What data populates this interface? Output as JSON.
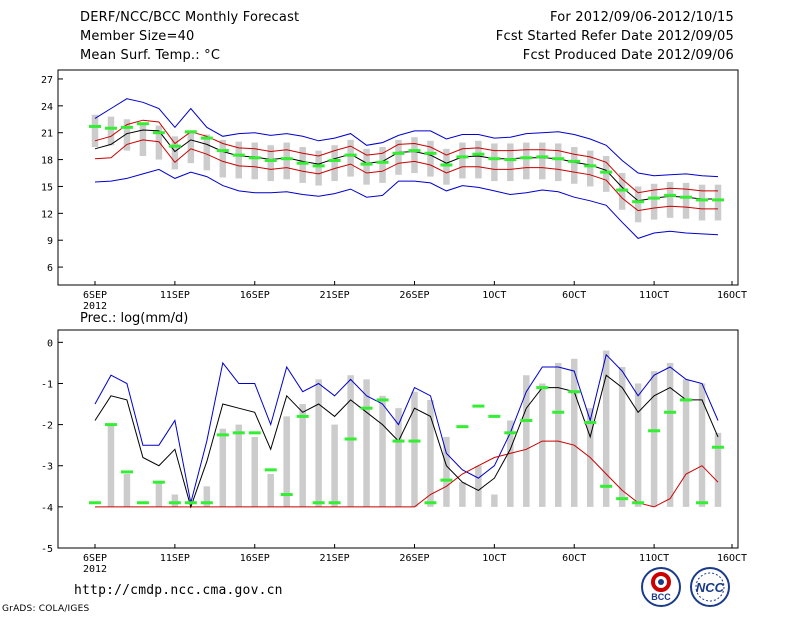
{
  "header": {
    "title": "DERF/NCC/BCC Monthly Forecast",
    "member": "Member Size=40",
    "variable": "Mean Surf. Temp.: °C",
    "period": "For 2012/09/06-2012/10/15",
    "refer": "Fcst Started Refer Date 2012/09/05",
    "produced": "Fcst Produced Date 2012/09/06"
  },
  "footer": {
    "url": "http://cmdp.ncc.cma.gov.cn",
    "grads": "GrADS: COLA/IGES",
    "logo1": "BCC",
    "logo2": "NCC"
  },
  "colors": {
    "box": "#cccccc",
    "median": "#33ee33",
    "envelope": "#0000cc",
    "mean": "#000000",
    "std": "#cc0000",
    "axis": "#000000"
  },
  "chart_data": [
    {
      "name": "temperature",
      "type": "line",
      "title": "Mean Surf. Temp.: °C",
      "xlabels": [
        "6SEP",
        "11SEP",
        "16SEP",
        "21SEP",
        "26SEP",
        "1OCT",
        "6OCT",
        "11OCT",
        "16OCT"
      ],
      "xyear": "2012",
      "ylim": [
        4,
        28
      ],
      "yticks": [
        6,
        9,
        12,
        15,
        18,
        21,
        24,
        27
      ],
      "days": 40,
      "series": [
        {
          "name": "max",
          "values": [
            22.6,
            23.7,
            24.8,
            24.4,
            23.7,
            21.6,
            23.7,
            21.6,
            20.6,
            20.9,
            21.0,
            20.7,
            20.9,
            20.6,
            20.1,
            20.4,
            20.9,
            19.6,
            19.9,
            20.7,
            21.2,
            21.2,
            20.3,
            20.8,
            20.8,
            20.4,
            20.5,
            20.9,
            21.0,
            21.1,
            20.8,
            20.3,
            19.6,
            17.9,
            16.5,
            16.2,
            16.3,
            16.4,
            16.2,
            16.1
          ]
        },
        {
          "name": "mean_plus_std",
          "values": [
            20.1,
            20.6,
            21.9,
            22.4,
            22.2,
            19.8,
            21.1,
            20.6,
            19.8,
            19.3,
            19.2,
            18.9,
            19.1,
            18.7,
            18.4,
            19.0,
            19.5,
            18.5,
            18.7,
            19.7,
            19.8,
            19.4,
            18.5,
            19.2,
            19.3,
            19.0,
            19.0,
            19.1,
            19.1,
            19.0,
            18.6,
            18.3,
            17.7,
            15.8,
            14.3,
            14.6,
            14.8,
            14.7,
            14.5,
            14.5
          ]
        },
        {
          "name": "mean",
          "values": [
            19.2,
            19.7,
            20.9,
            21.3,
            21.2,
            18.9,
            20.2,
            19.7,
            18.9,
            18.4,
            18.3,
            18.0,
            18.2,
            17.8,
            17.5,
            18.1,
            18.6,
            17.6,
            17.8,
            18.8,
            18.9,
            18.5,
            17.6,
            18.3,
            18.4,
            18.1,
            18.1,
            18.2,
            18.2,
            18.1,
            17.7,
            17.4,
            16.8,
            14.9,
            13.4,
            13.7,
            13.9,
            13.8,
            13.6,
            13.6
          ]
        },
        {
          "name": "mean_minus_std",
          "values": [
            18.1,
            18.2,
            19.7,
            20.2,
            20.0,
            17.7,
            19.2,
            18.6,
            17.8,
            17.3,
            17.2,
            16.9,
            17.1,
            16.7,
            16.4,
            17.0,
            17.5,
            16.5,
            16.7,
            17.6,
            17.8,
            17.4,
            16.5,
            17.2,
            17.2,
            16.9,
            16.9,
            17.1,
            17.1,
            16.9,
            16.6,
            16.3,
            15.7,
            13.7,
            12.3,
            12.6,
            12.8,
            12.7,
            12.5,
            12.5
          ]
        },
        {
          "name": "min",
          "values": [
            15.5,
            15.6,
            15.9,
            16.4,
            16.9,
            15.9,
            16.6,
            16.1,
            15.1,
            14.5,
            14.3,
            14.3,
            14.4,
            14.1,
            13.9,
            14.2,
            14.7,
            13.8,
            14.0,
            15.6,
            15.6,
            15.4,
            14.5,
            15.1,
            14.9,
            14.5,
            14.1,
            14.3,
            14.6,
            14.4,
            13.8,
            13.4,
            12.9,
            11.0,
            9.2,
            9.8,
            10.0,
            9.8,
            9.7,
            9.6
          ]
        },
        {
          "name": "box_hi",
          "values": [
            23.0,
            22.8,
            22.5,
            22.0,
            21.8,
            20.6,
            21.0,
            20.8,
            20.2,
            20.0,
            19.9,
            19.6,
            19.9,
            19.4,
            19.0,
            19.6,
            20.2,
            19.2,
            19.4,
            20.2,
            20.5,
            20.1,
            19.2,
            19.9,
            20.1,
            19.8,
            19.8,
            19.9,
            19.9,
            19.8,
            19.4,
            19.0,
            18.4,
            16.5,
            15.0,
            15.3,
            15.5,
            15.4,
            15.2,
            15.2
          ]
        },
        {
          "name": "box_lo",
          "values": [
            19.4,
            19.6,
            19.0,
            18.4,
            18.0,
            16.9,
            17.6,
            16.8,
            16.0,
            15.9,
            15.8,
            15.6,
            15.8,
            15.4,
            15.1,
            15.6,
            16.1,
            15.2,
            15.4,
            16.3,
            16.5,
            16.1,
            15.2,
            15.9,
            15.9,
            15.6,
            15.6,
            15.8,
            15.8,
            15.6,
            15.3,
            15.0,
            14.4,
            12.4,
            11.0,
            11.3,
            11.5,
            11.4,
            11.2,
            11.2
          ]
        },
        {
          "name": "median",
          "values": [
            21.7,
            21.5,
            21.6,
            22.0,
            21.0,
            19.5,
            21.1,
            20.4,
            19.0,
            18.5,
            18.2,
            17.9,
            18.1,
            17.6,
            17.3,
            17.9,
            18.5,
            17.5,
            17.7,
            18.7,
            19.0,
            18.7,
            17.4,
            18.3,
            18.6,
            18.1,
            18.0,
            18.2,
            18.3,
            18.1,
            17.8,
            17.3,
            16.6,
            14.6,
            13.3,
            13.7,
            14.0,
            13.8,
            13.5,
            13.5
          ]
        }
      ]
    },
    {
      "name": "precipitation",
      "type": "bar",
      "title": "Prec.: log(mm/d)",
      "xlabels": [
        "6SEP",
        "11SEP",
        "16SEP",
        "21SEP",
        "26SEP",
        "1OCT",
        "6OCT",
        "11OCT",
        "16OCT"
      ],
      "xyear": "2012",
      "ylim": [
        -5,
        0.3
      ],
      "yticks": [
        -5,
        -4,
        -3,
        -2,
        -1,
        0
      ],
      "days": 40,
      "series": [
        {
          "name": "max",
          "values": [
            -1.5,
            -0.8,
            -1.0,
            -2.5,
            -2.5,
            -1.9,
            -3.9,
            -2.4,
            -0.5,
            -1.0,
            -1.0,
            -2.0,
            -0.6,
            -1.2,
            -1.0,
            -1.3,
            -0.9,
            -1.3,
            -1.5,
            -2.0,
            -1.1,
            -1.3,
            -2.7,
            -3.1,
            -3.3,
            -3.0,
            -2.2,
            -1.2,
            -0.6,
            -0.6,
            -0.7,
            -1.9,
            -0.3,
            -0.7,
            -1.3,
            -0.8,
            -0.6,
            -0.9,
            -1.0,
            -1.9
          ]
        },
        {
          "name": "mean",
          "values": [
            -1.9,
            -1.3,
            -1.4,
            -2.8,
            -3.0,
            -2.6,
            -4.0,
            -2.9,
            -1.5,
            -1.6,
            -1.7,
            -2.6,
            -1.3,
            -1.7,
            -1.5,
            -1.8,
            -1.4,
            -1.7,
            -2.0,
            -2.4,
            -1.6,
            -1.8,
            -3.0,
            -3.4,
            -3.6,
            -3.3,
            -2.6,
            -1.6,
            -1.1,
            -1.1,
            -1.2,
            -2.3,
            -0.8,
            -1.1,
            -1.7,
            -1.3,
            -1.1,
            -1.4,
            -1.4,
            -2.3
          ]
        },
        {
          "name": "mean_minus_std",
          "values": [
            -4.0,
            -4.0,
            -4.0,
            -4.0,
            -4.0,
            -4.0,
            -4.0,
            -4.0,
            -4.0,
            -4.0,
            -4.0,
            -4.0,
            -4.0,
            -4.0,
            -4.0,
            -4.0,
            -4.0,
            -4.0,
            -4.0,
            -4.0,
            -4.0,
            -3.7,
            -3.5,
            -3.2,
            -3.0,
            -2.8,
            -2.7,
            -2.6,
            -2.4,
            -2.4,
            -2.5,
            -2.8,
            -3.2,
            -3.6,
            -3.9,
            -4.0,
            -3.8,
            -3.2,
            -3.0,
            -3.4
          ]
        },
        {
          "name": "bar",
          "values": [
            -4.0,
            -2.0,
            -3.2,
            -4.0,
            -3.4,
            -3.7,
            -4.0,
            -3.5,
            -2.1,
            -2.0,
            -2.3,
            -3.2,
            -1.8,
            -1.5,
            -0.9,
            -2.0,
            -0.8,
            -0.9,
            -1.3,
            -1.6,
            -1.2,
            -1.4,
            -2.3,
            -3.4,
            -3.0,
            -3.7,
            -1.9,
            -0.8,
            -1.0,
            -0.5,
            -0.4,
            -1.6,
            -0.2,
            -0.6,
            -1.0,
            -0.7,
            -0.5,
            -0.9,
            -1.0,
            -2.2
          ]
        },
        {
          "name": "median",
          "values": [
            -3.9,
            -2.0,
            -3.15,
            -3.9,
            -3.4,
            -3.9,
            -3.9,
            -3.9,
            -2.25,
            -2.2,
            -2.2,
            -3.1,
            -3.7,
            -1.8,
            -3.9,
            -3.9,
            -2.35,
            -1.6,
            -1.4,
            -2.4,
            -2.4,
            -3.9,
            -3.35,
            -2.05,
            -1.55,
            -1.8,
            -2.2,
            -1.9,
            -1.1,
            -1.7,
            -1.2,
            -1.95,
            -3.5,
            -3.8,
            -3.9,
            -2.15,
            -1.7,
            -1.4,
            -3.9,
            -2.55
          ]
        }
      ]
    }
  ]
}
